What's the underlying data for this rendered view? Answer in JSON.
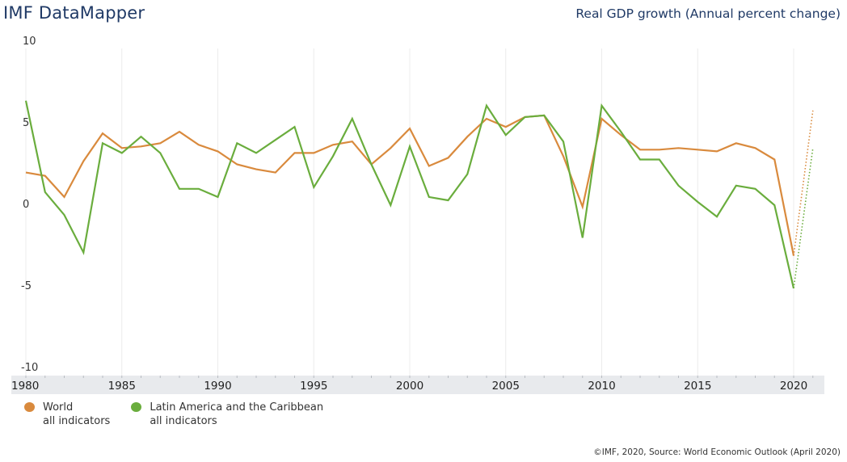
{
  "header": {
    "brand": "IMF DataMapper",
    "subtitle": "Real GDP growth (Annual percent change)"
  },
  "legend": [
    {
      "name": "World",
      "sub": "all indicators",
      "color": "#d98a3d"
    },
    {
      "name": "Latin America and the Caribbean",
      "sub": "all indicators",
      "color": "#6aad3d"
    }
  ],
  "footer": "©IMF, 2020, Source: World Economic Outlook (April 2020)",
  "chart_data": {
    "type": "line",
    "title": "Real GDP growth (Annual percent change)",
    "xlabel": "",
    "ylabel": "",
    "x": [
      1980,
      1981,
      1982,
      1983,
      1984,
      1985,
      1986,
      1987,
      1988,
      1989,
      1990,
      1991,
      1992,
      1993,
      1994,
      1995,
      1996,
      1997,
      1998,
      1999,
      2000,
      2001,
      2002,
      2003,
      2004,
      2005,
      2006,
      2007,
      2008,
      2009,
      2010,
      2011,
      2012,
      2013,
      2014,
      2015,
      2016,
      2017,
      2018,
      2019,
      2020,
      2021
    ],
    "xlim": [
      1980,
      2021.5
    ],
    "ylim": [
      -10,
      10
    ],
    "xticks": [
      1980,
      1985,
      1990,
      1995,
      2000,
      2005,
      2010,
      2015,
      2020
    ],
    "yticks": [
      10,
      5,
      0,
      -5,
      -10
    ],
    "grid": "vertical",
    "projection_from": 2020,
    "legend_position": "bottom-left",
    "series": [
      {
        "name": "World",
        "color": "#d98a3d",
        "values": [
          1.9,
          1.7,
          0.4,
          2.6,
          4.3,
          3.4,
          3.5,
          3.7,
          4.4,
          3.6,
          3.2,
          2.4,
          2.1,
          1.9,
          3.1,
          3.1,
          3.6,
          3.8,
          2.4,
          3.4,
          4.6,
          2.3,
          2.8,
          4.1,
          5.2,
          4.7,
          5.3,
          5.4,
          2.9,
          -0.2,
          5.2,
          4.2,
          3.3,
          3.3,
          3.4,
          3.3,
          3.2,
          3.7,
          3.4,
          2.7,
          -3.2,
          5.7
        ]
      },
      {
        "name": "Latin America and the Caribbean",
        "color": "#6aad3d",
        "values": [
          6.3,
          0.7,
          -0.7,
          -3.0,
          3.7,
          3.1,
          4.1,
          3.1,
          0.9,
          0.9,
          0.4,
          3.7,
          3.1,
          3.9,
          4.7,
          1.0,
          2.9,
          5.2,
          2.4,
          -0.1,
          3.5,
          0.4,
          0.2,
          1.8,
          6.0,
          4.2,
          5.3,
          5.4,
          3.8,
          -2.1,
          6.0,
          4.4,
          2.7,
          2.7,
          1.1,
          0.1,
          -0.8,
          1.1,
          0.9,
          -0.1,
          -5.2,
          3.4
        ]
      }
    ]
  }
}
